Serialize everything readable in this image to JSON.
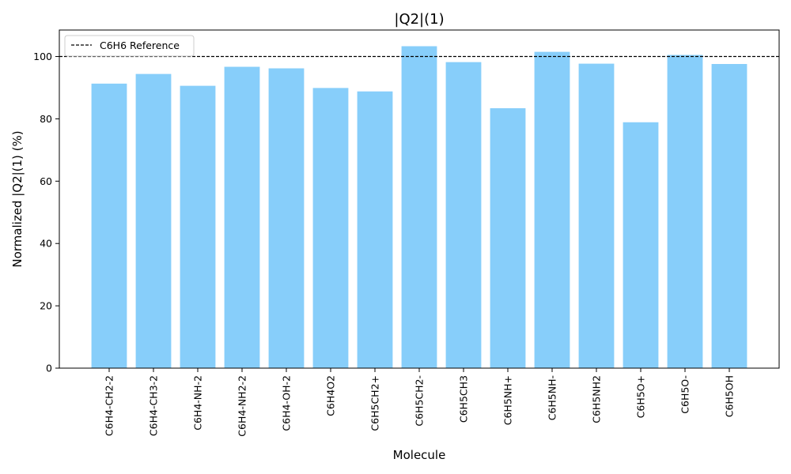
{
  "chart_data": {
    "type": "bar",
    "title": "|Q2|(1)",
    "xlabel": "Molecule",
    "ylabel": "Normalized |Q2|(1) (%)",
    "categories": [
      "C6H4-CH2-2",
      "C6H4-CH3-2",
      "C6H4-NH-2",
      "C6H4-NH2-2",
      "C6H4-OH-2",
      "C6H4O2",
      "C6H5CH2+",
      "C6H5CH2-",
      "C6H5CH3",
      "C6H5NH+",
      "C6H5NH-",
      "C6H5NH2",
      "C6H5O+",
      "C6H5O-",
      "C6H5OH"
    ],
    "values": [
      91.3,
      94.4,
      90.6,
      96.7,
      96.2,
      89.9,
      88.8,
      103.3,
      98.2,
      83.4,
      101.5,
      97.7,
      78.9,
      100.5,
      97.6
    ],
    "ylim": [
      0,
      108.5
    ],
    "yticks": [
      0,
      20,
      40,
      60,
      80,
      100
    ],
    "reference": {
      "label": "C6H6 Reference",
      "value": 100
    },
    "bar_color": "#87CEFA",
    "reference_color": "#000000",
    "grid": false,
    "legend_position": "upper-left"
  }
}
